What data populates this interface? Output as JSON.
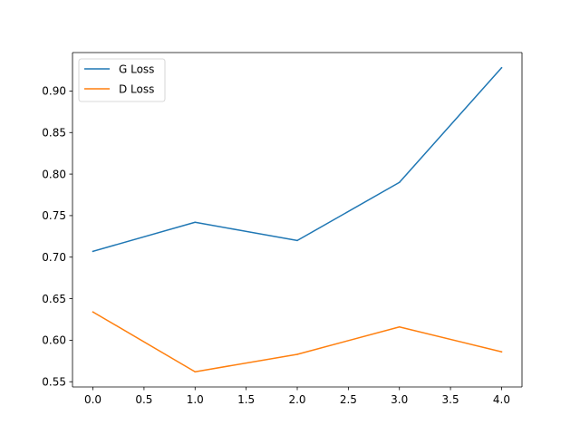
{
  "chart_data": {
    "type": "line",
    "title": "",
    "xlabel": "",
    "ylabel": "",
    "x": [
      0,
      1,
      2,
      3,
      4
    ],
    "series": [
      {
        "name": "G Loss",
        "color": "#1f77b4",
        "values": [
          0.707,
          0.742,
          0.72,
          0.79,
          0.928
        ]
      },
      {
        "name": "D Loss",
        "color": "#ff7f0e",
        "values": [
          0.634,
          0.562,
          0.583,
          0.616,
          0.586
        ]
      }
    ],
    "xlim": [
      -0.2,
      4.2
    ],
    "ylim": [
      0.5437,
      0.9463
    ],
    "xticks": [
      0.0,
      0.5,
      1.0,
      1.5,
      2.0,
      2.5,
      3.0,
      3.5,
      4.0
    ],
    "xtick_labels": [
      "0.0",
      "0.5",
      "1.0",
      "1.5",
      "2.0",
      "2.5",
      "3.0",
      "3.5",
      "4.0"
    ],
    "yticks": [
      0.55,
      0.6,
      0.65,
      0.7,
      0.75,
      0.8,
      0.85,
      0.9
    ],
    "ytick_labels": [
      "0.55",
      "0.60",
      "0.65",
      "0.70",
      "0.75",
      "0.80",
      "0.85",
      "0.90"
    ],
    "grid": false,
    "legend": "top-left"
  }
}
